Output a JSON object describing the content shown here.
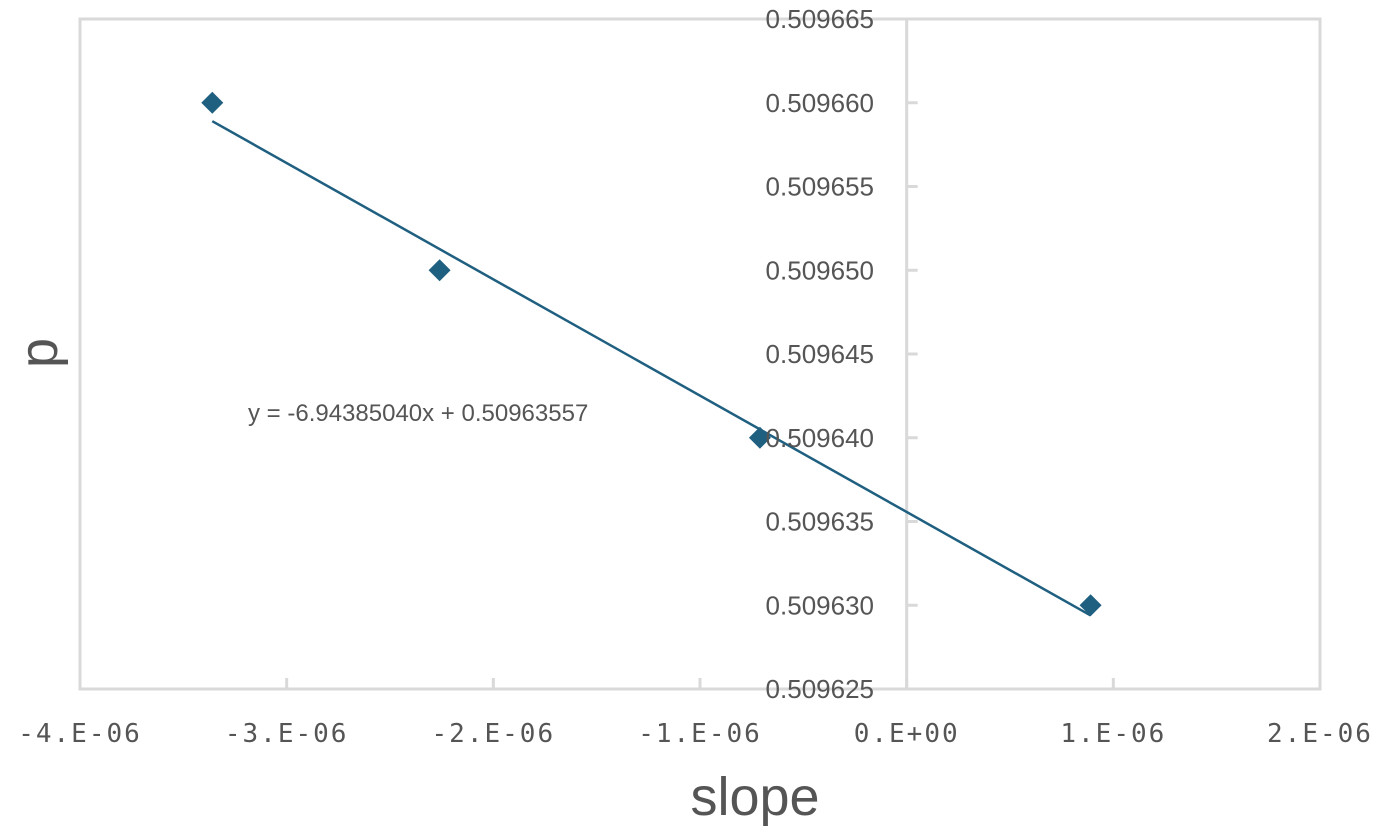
{
  "chart_data": {
    "type": "scatter",
    "title": "",
    "xlabel": "slope",
    "ylabel": "p",
    "xlim": [
      -4e-06,
      2e-06
    ],
    "ylim": [
      0.509625,
      0.509665
    ],
    "grid": false,
    "legend": "none",
    "x_ticks": [
      "-4.E-06",
      "-3.E-06",
      "-2.E-06",
      "-1.E-06",
      "0.E+00",
      "1.E-06",
      "2.E-06"
    ],
    "x_tick_values": [
      -4e-06,
      -3e-06,
      -2e-06,
      -1e-06,
      0,
      1e-06,
      2e-06
    ],
    "y_ticks": [
      "0.509625",
      "0.509630",
      "0.509635",
      "0.509640",
      "0.509645",
      "0.509650",
      "0.509655",
      "0.509660",
      "0.509665"
    ],
    "y_tick_values": [
      0.509625,
      0.50963,
      0.509635,
      0.50964,
      0.509645,
      0.50965,
      0.509655,
      0.50966,
      0.509665
    ],
    "series": [
      {
        "points": [
          {
            "x": -3.36e-06,
            "y": 0.50966
          },
          {
            "x": -2.26e-06,
            "y": 0.50965
          },
          {
            "x": -7.1e-07,
            "y": 0.50964
          },
          {
            "x": 8.9e-07,
            "y": 0.50963
          }
        ],
        "color": "#1f5f80"
      }
    ],
    "trendline": {
      "equation": "y = -6.94385040x + 0.50963557",
      "slope": -6.9438504,
      "intercept": 0.50963557,
      "x_range": [
        -3.36e-06,
        8.9e-07
      ],
      "color": "#1f5f80"
    },
    "colors": {
      "axis": "#d9d9d9",
      "tick_text": "#555555",
      "marker": "#1f5f80"
    }
  }
}
